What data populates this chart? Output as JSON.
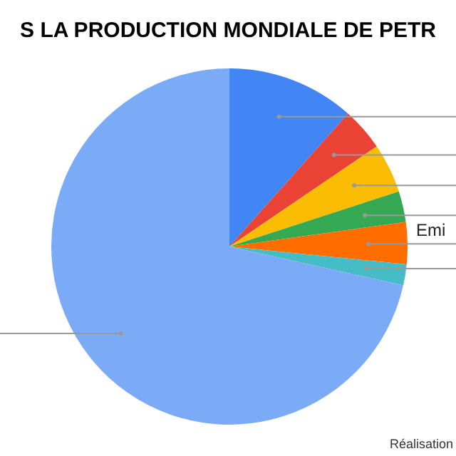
{
  "chart_data": {
    "type": "pie",
    "title": "S LA PRODUCTION MONDIALE DE PETR",
    "categories": [
      null,
      null,
      null,
      null,
      "Emi",
      null,
      null
    ],
    "values": [
      11.6,
      3.9,
      4.5,
      2.8,
      3.8,
      1.9,
      71.5
    ],
    "colors": [
      "#4285f4",
      "#ea4335",
      "#fbbc04",
      "#34a853",
      "#ff6d01",
      "#46bdc6",
      "#7baaf7"
    ],
    "legend": false,
    "annotations": [
      "Réalisation"
    ]
  }
}
